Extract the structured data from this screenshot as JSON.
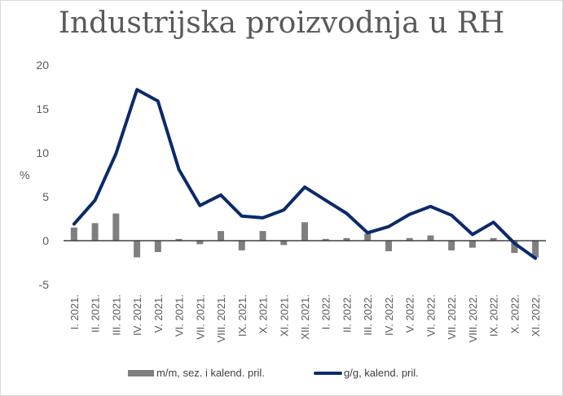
{
  "chart_data": {
    "type": "bar+line",
    "title": "Industrijska proizvodnja u RH",
    "xlabel": "",
    "ylabel": "%",
    "ylim": [
      -5,
      20
    ],
    "yticks": [
      -5,
      0,
      5,
      10,
      15,
      20
    ],
    "grid": false,
    "legend_position": "bottom",
    "categories": [
      "I. 2021.",
      "II. 2021.",
      "III. 2021.",
      "IV. 2021.",
      "V. 2021.",
      "VI. 2021.",
      "VII. 2021.",
      "VIII. 2021.",
      "IX. 2021.",
      "X. 2021.",
      "XI. 2021.",
      "XII. 2021.",
      "I. 2022.",
      "II. 2022.",
      "III. 2022.",
      "IV. 2022.",
      "V. 2022.",
      "VI. 2022.",
      "VII. 2022.",
      "VIII. 2022.",
      "IX. 2022.",
      "X. 2022.",
      "XI. 2022."
    ],
    "series": [
      {
        "name": "m/m, sez. i kalend. pril.",
        "type": "bar",
        "color": "#7f7f7f",
        "values": [
          1.5,
          2.0,
          3.1,
          -1.9,
          -1.3,
          0.2,
          -0.4,
          1.1,
          -1.1,
          1.1,
          -0.5,
          2.1,
          0.2,
          0.3,
          0.8,
          -1.2,
          0.3,
          0.6,
          -1.1,
          -0.8,
          0.3,
          -1.4,
          -1.9
        ]
      },
      {
        "name": "g/g, kalend. pril.",
        "type": "line",
        "color": "#0b2a6b",
        "values": [
          1.9,
          4.6,
          9.9,
          17.2,
          15.9,
          8.1,
          4.0,
          5.2,
          2.8,
          2.6,
          3.5,
          6.1,
          4.6,
          3.1,
          0.9,
          1.6,
          3.0,
          3.9,
          2.9,
          0.7,
          2.1,
          -0.3,
          -2.0
        ]
      }
    ]
  },
  "legend": {
    "bar_label": "m/m, sez. i kalend. pril.",
    "line_label": "g/g, kalend. pril."
  },
  "axis": {
    "y_unit": "%"
  }
}
